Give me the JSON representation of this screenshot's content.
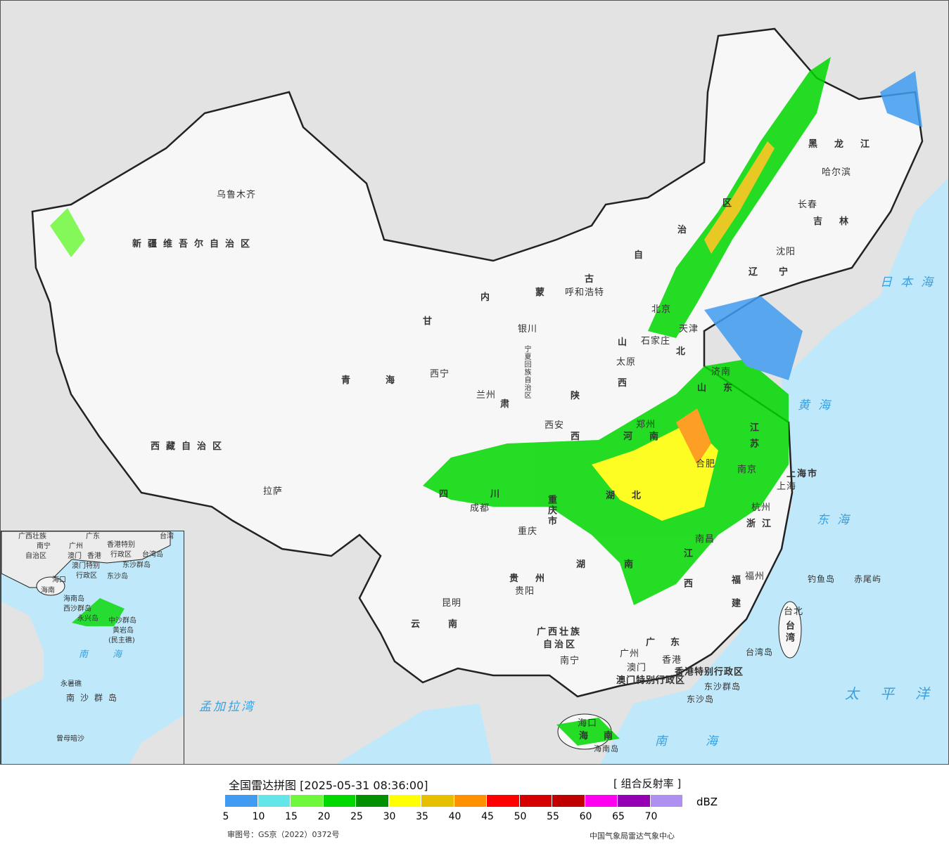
{
  "map": {
    "labels": [
      "新疆维吾尔自治区",
      "乌鲁木齐",
      "西藏自治区",
      "拉萨",
      "青海",
      "西宁",
      "甘",
      "兰州",
      "肃",
      "内",
      "蒙",
      "古",
      "自",
      "治",
      "区",
      "呼和浩特",
      "银川",
      "宁夏回族自治区",
      "陕",
      "西",
      "西安",
      "山",
      "西",
      "太原",
      "北京",
      "天津",
      "石家庄",
      "北",
      "黑龙江",
      "哈尔滨",
      "长春",
      "吉林",
      "沈阳",
      "辽宁",
      "日本海",
      "山东",
      "济南",
      "黄海",
      "郑州",
      "河南",
      "江苏",
      "合肥",
      "南京",
      "上海市",
      "上海",
      "杭州",
      "浙江",
      "东海",
      "湖北",
      "四川",
      "成都",
      "重庆市",
      "重庆",
      "贵州",
      "贵阳",
      "湖南",
      "江西",
      "南昌",
      "福建",
      "福州",
      "钓鱼岛",
      "赤尾屿",
      "台北",
      "台湾",
      "台湾岛",
      "云南",
      "昆明",
      "广西壮族",
      "自治区",
      "南宁",
      "广东",
      "广州",
      "澳门",
      "香港",
      "香港特别行政区",
      "澳门特别行政区",
      "东沙群岛",
      "东沙岛",
      "太平洋",
      "海口",
      "海南",
      "海南岛",
      "南海",
      "孟加拉湾"
    ],
    "inset_labels": [
      "广西壮族",
      "自治区",
      "南宁",
      "广东",
      "广州",
      "澳门",
      "香港",
      "香港特别",
      "行政区",
      "台湾",
      "台湾岛",
      "澳门特别",
      "行政区",
      "东沙群岛",
      "东沙岛",
      "海口",
      "海南",
      "海南岛",
      "西沙群岛",
      "永兴岛",
      "中沙群岛",
      "黄岩岛",
      "(民主礁)",
      "南海",
      "永暑礁",
      "南沙群岛",
      "曾母暗沙"
    ]
  },
  "legend": {
    "title": "全国雷达拼图 [2025-05-31 08:36:00]",
    "product": "[ 组合反射率 ]",
    "unit": "dBZ",
    "ticks": [
      "5",
      "10",
      "15",
      "20",
      "25",
      "30",
      "35",
      "40",
      "45",
      "50",
      "55",
      "60",
      "65",
      "70"
    ],
    "colors": [
      "#409cf0",
      "#64e6e8",
      "#6ef83c",
      "#00d800",
      "#009000",
      "#ffff00",
      "#e6c000",
      "#ff9000",
      "#ff0000",
      "#d60000",
      "#c00000",
      "#ff00f0",
      "#9600b4",
      "#ad90f0"
    ],
    "approval": "审图号：GS京（2022）0372号",
    "org": "中国气象局雷达气象中心"
  }
}
